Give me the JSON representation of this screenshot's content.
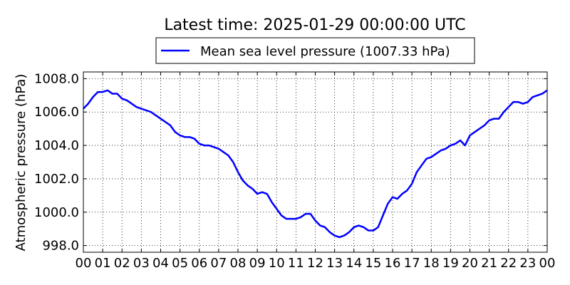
{
  "chart_data": {
    "type": "line",
    "title": "Latest time: 2025-01-29 00:00:00 UTC",
    "xlabel": "",
    "ylabel": "Atmospheric pressure (hPa)",
    "x_ticks": [
      "00",
      "01",
      "02",
      "03",
      "04",
      "05",
      "06",
      "07",
      "08",
      "09",
      "10",
      "11",
      "12",
      "13",
      "14",
      "15",
      "16",
      "17",
      "18",
      "19",
      "20",
      "21",
      "22",
      "23",
      "00"
    ],
    "y_ticks": [
      "998.0",
      "1000.0",
      "1002.0",
      "1004.0",
      "1006.0",
      "1008.0"
    ],
    "xlim": [
      0,
      24
    ],
    "ylim": [
      997.6,
      1008.4
    ],
    "grid": true,
    "legend_position": "top-center",
    "series": [
      {
        "name": "Mean sea level pressure (1007.33 hPa)",
        "color": "#0000ff",
        "x": [
          0,
          0.25,
          0.5,
          0.75,
          1,
          1.25,
          1.5,
          1.75,
          2,
          2.25,
          2.5,
          2.75,
          3,
          3.25,
          3.5,
          3.75,
          4,
          4.25,
          4.5,
          4.75,
          5,
          5.25,
          5.5,
          5.75,
          6,
          6.25,
          6.5,
          6.75,
          7,
          7.25,
          7.5,
          7.75,
          8,
          8.25,
          8.5,
          8.75,
          9,
          9.25,
          9.5,
          9.75,
          10,
          10.25,
          10.5,
          10.75,
          11,
          11.25,
          11.5,
          11.75,
          12,
          12.25,
          12.5,
          12.75,
          13,
          13.25,
          13.5,
          13.75,
          14,
          14.25,
          14.5,
          14.75,
          15,
          15.25,
          15.5,
          15.75,
          16,
          16.25,
          16.5,
          16.75,
          17,
          17.25,
          17.5,
          17.75,
          18,
          18.25,
          18.5,
          18.75,
          19,
          19.25,
          19.5,
          19.75,
          20,
          20.25,
          20.5,
          20.75,
          21,
          21.25,
          21.5,
          21.75,
          22,
          22.25,
          22.5,
          22.75,
          23,
          23.25,
          23.5,
          23.75,
          24
        ],
        "y": [
          1006.2,
          1006.5,
          1006.9,
          1007.2,
          1007.2,
          1007.3,
          1007.1,
          1007.1,
          1006.8,
          1006.7,
          1006.5,
          1006.3,
          1006.2,
          1006.1,
          1006.0,
          1005.8,
          1005.6,
          1005.4,
          1005.2,
          1004.8,
          1004.6,
          1004.5,
          1004.5,
          1004.4,
          1004.1,
          1004.0,
          1004.0,
          1003.9,
          1003.8,
          1003.6,
          1003.4,
          1003.0,
          1002.4,
          1001.9,
          1001.6,
          1001.4,
          1001.1,
          1001.2,
          1001.1,
          1000.6,
          1000.2,
          999.8,
          999.6,
          999.6,
          999.6,
          999.7,
          999.9,
          999.9,
          999.5,
          999.2,
          999.1,
          998.8,
          998.6,
          998.5,
          998.6,
          998.8,
          999.1,
          999.2,
          999.1,
          998.9,
          998.9,
          999.1,
          999.8,
          1000.5,
          1000.9,
          1000.8,
          1001.1,
          1001.3,
          1001.7,
          1002.4,
          1002.8,
          1003.2,
          1003.3,
          1003.5,
          1003.7,
          1003.8,
          1004.0,
          1004.1,
          1004.3,
          1004.0,
          1004.6,
          1004.8,
          1005.0,
          1005.2,
          1005.5,
          1005.6,
          1005.6,
          1006.0,
          1006.3,
          1006.6,
          1006.6,
          1006.5,
          1006.6,
          1006.9,
          1007.0,
          1007.1,
          1007.3
        ]
      }
    ]
  }
}
